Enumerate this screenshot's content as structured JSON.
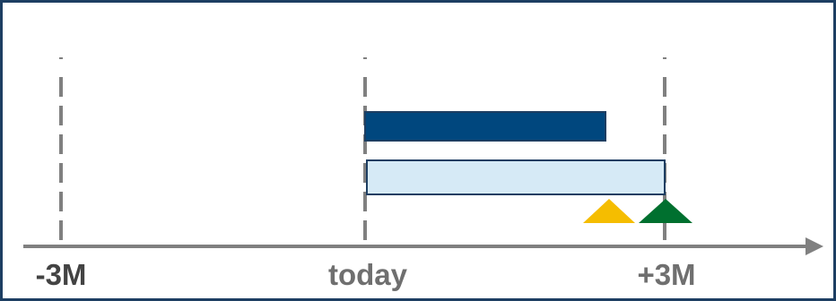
{
  "timeline": {
    "ticks": [
      {
        "id": "minus-3m",
        "label": "-3M",
        "offset_months": -3,
        "color": "#434343"
      },
      {
        "id": "today",
        "label": "today",
        "offset_months": 0,
        "color": "#6f6f6f"
      },
      {
        "id": "plus-3m",
        "label": "+3M",
        "offset_months": 3,
        "color": "#6f6f6f"
      }
    ]
  },
  "bars": [
    {
      "id": "dark-bar",
      "start_months": 0,
      "end_months": 2.5,
      "fill": "#00477e",
      "stroke": "#1d3e62"
    },
    {
      "id": "light-bar",
      "start_months": 0,
      "end_months": 3,
      "fill": "#d6eaf6",
      "stroke": "#1d3e62"
    }
  ],
  "markers": [
    {
      "id": "yellow-marker",
      "at_months": 2.5,
      "color": "#f5bd00"
    },
    {
      "id": "green-marker",
      "at_months": 3,
      "color": "#00702f"
    }
  ],
  "colors": {
    "frame": "#1d3e62",
    "axis": "#808080",
    "gridline": "#808080"
  }
}
